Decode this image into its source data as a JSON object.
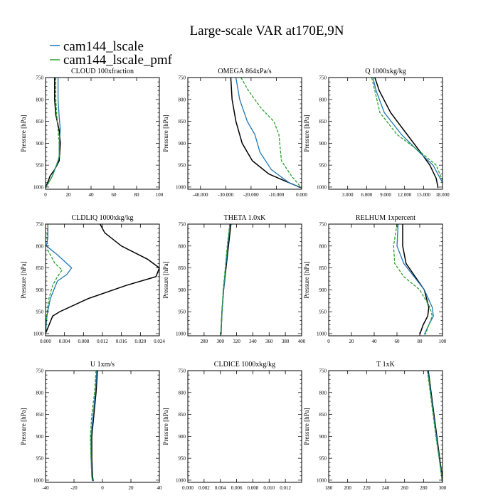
{
  "figure": {
    "title": "Large-scale VAR at170E,9N",
    "legend": [
      {
        "name": "cam144_lscale",
        "color": "#1f77b4"
      },
      {
        "name": "cam144_lscale_pmf",
        "color": "#2ca02c"
      }
    ],
    "ref_color": "#000000"
  },
  "chart_data": [
    {
      "type": "line",
      "title": "CLOUD  100xfraction",
      "ylabel": "Pressure [hPa]",
      "xlim": [
        0,
        100
      ],
      "ylim": [
        750,
        1005
      ],
      "y_inverted": true,
      "xticks": [
        0,
        20,
        40,
        60,
        80,
        100
      ],
      "xtick_labels": [
        "0",
        "20",
        "40",
        "60",
        "80",
        "100"
      ],
      "yticks": [
        750,
        800,
        850,
        900,
        950,
        1000
      ],
      "ytick_labels": [
        "750",
        "800",
        "850",
        "900",
        "950",
        "1000"
      ],
      "series": [
        {
          "role": "reference",
          "color": "#000000",
          "dash": "",
          "x": [
            8,
            8,
            9,
            12,
            13,
            12,
            8,
            4,
            0
          ],
          "y": [
            750,
            800,
            835,
            870,
            900,
            940,
            960,
            975,
            1002
          ]
        },
        {
          "name": "cam144_lscale",
          "color": "#1f77b4",
          "dash": "",
          "x": [
            11,
            11,
            12,
            13,
            12,
            12,
            11,
            6,
            0
          ],
          "y": [
            750,
            800,
            840,
            870,
            900,
            930,
            940,
            975,
            1002
          ]
        },
        {
          "name": "cam144_lscale_pmf",
          "color": "#2ca02c",
          "dash": "4,2",
          "x": [
            9,
            9,
            10,
            11,
            12,
            12,
            11,
            6,
            0
          ],
          "y": [
            750,
            800,
            840,
            870,
            900,
            930,
            940,
            975,
            1002
          ]
        }
      ]
    },
    {
      "type": "line",
      "title": "OMEGA  864xPa/s",
      "ylabel": "Pressure [hPa]",
      "xlim": [
        -45000,
        0
      ],
      "ylim": [
        750,
        1005
      ],
      "y_inverted": true,
      "xticks": [
        -40000,
        -30000,
        -20000,
        -10000,
        0
      ],
      "xtick_labels": [
        "-40.000",
        "-30.000",
        "-20.000",
        "-10.000",
        "0.000"
      ],
      "yticks": [
        750,
        800,
        850,
        900,
        950,
        1000
      ],
      "ytick_labels": [
        "750",
        "800",
        "850",
        "900",
        "950",
        "1000"
      ],
      "series": [
        {
          "role": "reference",
          "color": "#000000",
          "dash": "",
          "x": [
            -28000,
            -27500,
            -26000,
            -23500,
            -19500,
            -13000,
            -5000,
            0
          ],
          "y": [
            750,
            800,
            850,
            900,
            940,
            970,
            990,
            1002
          ]
        },
        {
          "name": "cam144_lscale",
          "color": "#1f77b4",
          "dash": "",
          "x": [
            -26000,
            -24500,
            -21500,
            -18500,
            -16500,
            -12000,
            -5000,
            0
          ],
          "y": [
            750,
            800,
            850,
            880,
            920,
            960,
            990,
            1002
          ]
        },
        {
          "name": "cam144_lscale_pmf",
          "color": "#2ca02c",
          "dash": "4,2",
          "x": [
            -24000,
            -21000,
            -16000,
            -11000,
            -9000,
            -8000,
            -4000,
            0
          ],
          "y": [
            750,
            780,
            820,
            850,
            880,
            940,
            975,
            1002
          ]
        }
      ]
    },
    {
      "type": "line",
      "title": "Q  1000xkg/kg",
      "ylabel": "Pressure [hPa]",
      "xlim": [
        0,
        18000
      ],
      "ylim": [
        750,
        1005
      ],
      "y_inverted": true,
      "xticks": [
        3000,
        6000,
        9000,
        12000,
        15000,
        18000
      ],
      "xtick_labels": [
        "3.000",
        "6.000",
        "9.000",
        "12.000",
        "15.000",
        "18.000"
      ],
      "yticks": [
        750,
        800,
        850,
        900,
        950,
        1000
      ],
      "ytick_labels": [
        "750",
        "800",
        "850",
        "900",
        "950",
        "1000"
      ],
      "series": [
        {
          "role": "reference",
          "color": "#000000",
          "dash": "",
          "x": [
            7300,
            8000,
            9800,
            12400,
            14500,
            16000,
            17000,
            17300
          ],
          "y": [
            750,
            780,
            830,
            880,
            920,
            950,
            980,
            1002
          ]
        },
        {
          "name": "cam144_lscale",
          "color": "#1f77b4",
          "dash": "",
          "x": [
            7000,
            7500,
            8800,
            11500,
            14300,
            16500,
            18000
          ],
          "y": [
            750,
            780,
            830,
            880,
            920,
            950,
            990
          ]
        },
        {
          "name": "cam144_lscale_pmf",
          "color": "#2ca02c",
          "dash": "4,2",
          "x": [
            6800,
            7300,
            8100,
            10800,
            14500,
            17000,
            18000
          ],
          "y": [
            750,
            780,
            830,
            880,
            920,
            950,
            985
          ]
        }
      ]
    },
    {
      "type": "line",
      "title": "CLDLIQ  1000xkg/kg",
      "ylabel": "Pressure [hPa]",
      "xlim": [
        0,
        0.024
      ],
      "ylim": [
        750,
        1005
      ],
      "y_inverted": true,
      "xticks": [
        0,
        0.004,
        0.008,
        0.012,
        0.016,
        0.02,
        0.024
      ],
      "xtick_labels": [
        "0.000",
        "0.004",
        "0.008",
        "0.012",
        "0.016",
        "0.020",
        "0.024"
      ],
      "yticks": [
        750,
        800,
        850,
        900,
        950,
        1000
      ],
      "ytick_labels": [
        "750",
        "800",
        "850",
        "900",
        "950",
        "1000"
      ],
      "series": [
        {
          "role": "reference",
          "color": "#000000",
          "dash": "",
          "x": [
            0.0115,
            0.0125,
            0.016,
            0.0215,
            0.024,
            0.0233,
            0.017,
            0.009,
            0.003,
            0.0015,
            0.0
          ],
          "y": [
            750,
            770,
            800,
            830,
            850,
            870,
            890,
            920,
            950,
            960,
            1000
          ]
        },
        {
          "name": "cam144_lscale",
          "color": "#1f77b4",
          "dash": "",
          "x": [
            0.0005,
            0.0005,
            0.0002,
            0.0025,
            0.0055,
            0.0045,
            0.0025,
            0.001,
            0.0003,
            0.0
          ],
          "y": [
            750,
            780,
            800,
            820,
            850,
            865,
            880,
            920,
            960,
            1000
          ]
        },
        {
          "name": "cam144_lscale_pmf",
          "color": "#2ca02c",
          "dash": "4,2",
          "x": [
            0.0005,
            0.0003,
            0.0005,
            0.002,
            0.0035,
            0.0025,
            0.0015,
            0.0007,
            0.0002,
            0.0
          ],
          "y": [
            750,
            780,
            810,
            840,
            855,
            870,
            890,
            920,
            960,
            1000
          ]
        }
      ]
    },
    {
      "type": "line",
      "title": "THETA  1.0xK",
      "ylabel": "Pressure [hPa]",
      "xlim": [
        260,
        400
      ],
      "ylim": [
        750,
        1005
      ],
      "y_inverted": true,
      "xticks": [
        280,
        300,
        320,
        340,
        360,
        380,
        400
      ],
      "xtick_labels": [
        "280",
        "300",
        "320",
        "340",
        "360",
        "380",
        "400"
      ],
      "yticks": [
        750,
        800,
        850,
        900,
        950,
        1000
      ],
      "ytick_labels": [
        "750",
        "800",
        "850",
        "900",
        "950",
        "1000"
      ],
      "series": [
        {
          "role": "reference",
          "color": "#000000",
          "dash": "",
          "x": [
            313,
            310,
            307,
            304,
            302,
            301,
            301
          ],
          "y": [
            750,
            800,
            850,
            900,
            950,
            990,
            1002
          ]
        },
        {
          "name": "cam144_lscale",
          "color": "#1f77b4",
          "dash": "",
          "x": [
            312,
            309,
            306.5,
            304,
            302,
            301,
            301
          ],
          "y": [
            750,
            800,
            850,
            900,
            950,
            990,
            1002
          ]
        },
        {
          "name": "cam144_lscale_pmf",
          "color": "#2ca02c",
          "dash": "4,2",
          "x": [
            311.5,
            308.5,
            306,
            303.5,
            302,
            301,
            301
          ],
          "y": [
            750,
            800,
            850,
            900,
            950,
            990,
            1002
          ]
        }
      ]
    },
    {
      "type": "line",
      "title": "RELHUM  1xpercent",
      "ylabel": "Pressure [hPa]",
      "xlim": [
        0,
        100
      ],
      "ylim": [
        750,
        1005
      ],
      "y_inverted": true,
      "xticks": [
        0,
        20,
        40,
        60,
        80,
        100
      ],
      "xtick_labels": [
        "0",
        "20",
        "40",
        "60",
        "80",
        "100"
      ],
      "yticks": [
        750,
        800,
        850,
        900,
        950,
        1000
      ],
      "ytick_labels": [
        "750",
        "800",
        "850",
        "900",
        "950",
        "1000"
      ],
      "series": [
        {
          "role": "reference",
          "color": "#000000",
          "dash": "",
          "x": [
            65,
            65,
            68,
            76,
            84,
            88,
            87,
            83,
            80
          ],
          "y": [
            750,
            800,
            840,
            870,
            900,
            940,
            960,
            980,
            1002
          ]
        },
        {
          "name": "cam144_lscale",
          "color": "#1f77b4",
          "dash": "",
          "x": [
            61,
            60,
            66,
            75,
            84,
            91,
            92,
            88,
            84
          ],
          "y": [
            750,
            800,
            840,
            870,
            900,
            940,
            960,
            980,
            1002
          ]
        },
        {
          "name": "cam144_lscale_pmf",
          "color": "#2ca02c",
          "dash": "4,2",
          "x": [
            60,
            57,
            58,
            66,
            80,
            89,
            91,
            88,
            85
          ],
          "y": [
            750,
            800,
            840,
            870,
            900,
            940,
            960,
            980,
            1002
          ]
        }
      ]
    },
    {
      "type": "line",
      "title": "U  1xm/s",
      "ylabel": "Pressure [hPa]",
      "xlim": [
        -40,
        40
      ],
      "ylim": [
        750,
        1005
      ],
      "y_inverted": true,
      "xticks": [
        -40,
        -20,
        0,
        20,
        40
      ],
      "xtick_labels": [
        "-40",
        "-20",
        "0",
        "20",
        "40"
      ],
      "yticks": [
        750,
        800,
        850,
        900,
        950,
        1000
      ],
      "ytick_labels": [
        "750",
        "800",
        "850",
        "900",
        "950",
        "1000"
      ],
      "series": [
        {
          "role": "reference",
          "color": "#000000",
          "dash": "",
          "x": [
            -3.5,
            -4.5,
            -6,
            -7.5,
            -7.5,
            -7,
            -6.5
          ],
          "y": [
            750,
            800,
            850,
            900,
            950,
            990,
            1002
          ]
        },
        {
          "name": "cam144_lscale",
          "color": "#1f77b4",
          "dash": "",
          "x": [
            -4,
            -5,
            -6.5,
            -8,
            -8,
            -7.5,
            -7
          ],
          "y": [
            750,
            800,
            850,
            900,
            950,
            990,
            1002
          ]
        },
        {
          "name": "cam144_lscale_pmf",
          "color": "#2ca02c",
          "dash": "4,2",
          "x": [
            -4.5,
            -5.5,
            -7.5,
            -8.5,
            -8,
            -7.5,
            -7
          ],
          "y": [
            750,
            800,
            850,
            900,
            950,
            990,
            1002
          ]
        }
      ]
    },
    {
      "type": "line",
      "title": "CLDICE  1000xkg/kg",
      "ylabel": "Pressure [hPa]",
      "xlim": [
        0,
        0.014
      ],
      "ylim": [
        750,
        1005
      ],
      "y_inverted": true,
      "xticks": [
        0,
        0.002,
        0.004,
        0.006,
        0.008,
        0.01,
        0.012
      ],
      "xtick_labels": [
        "0.000",
        "0.002",
        "0.004",
        "0.006",
        "0.008",
        "0.010",
        "0.012"
      ],
      "yticks": [
        750,
        800,
        850,
        900,
        950,
        1000
      ],
      "ytick_labels": [
        "750",
        "800",
        "850",
        "900",
        "950",
        "1000"
      ],
      "series": []
    },
    {
      "type": "line",
      "title": "T  1xK",
      "ylabel": "Pressure [hPa]",
      "xlim": [
        180,
        300
      ],
      "ylim": [
        750,
        1005
      ],
      "y_inverted": true,
      "xticks": [
        180,
        200,
        220,
        240,
        260,
        280,
        300
      ],
      "xtick_labels": [
        "180",
        "200",
        "220",
        "240",
        "260",
        "280",
        "300"
      ],
      "yticks": [
        750,
        800,
        850,
        900,
        950,
        1000
      ],
      "ytick_labels": [
        "750",
        "800",
        "850",
        "900",
        "950",
        "1000"
      ],
      "series": [
        {
          "role": "reference",
          "color": "#000000",
          "dash": "",
          "x": [
            285,
            288,
            291,
            294,
            297,
            299.5,
            300
          ],
          "y": [
            750,
            800,
            850,
            900,
            950,
            990,
            1002
          ]
        },
        {
          "name": "cam144_lscale",
          "color": "#1f77b4",
          "dash": "",
          "x": [
            284.5,
            287.5,
            290.5,
            293.5,
            296.5,
            299,
            299.5
          ],
          "y": [
            750,
            800,
            850,
            900,
            950,
            990,
            1002
          ]
        },
        {
          "name": "cam144_lscale_pmf",
          "color": "#2ca02c",
          "dash": "4,2",
          "x": [
            284,
            287,
            290,
            293,
            296.5,
            299,
            299.5
          ],
          "y": [
            750,
            800,
            850,
            900,
            950,
            990,
            1002
          ]
        }
      ]
    }
  ]
}
